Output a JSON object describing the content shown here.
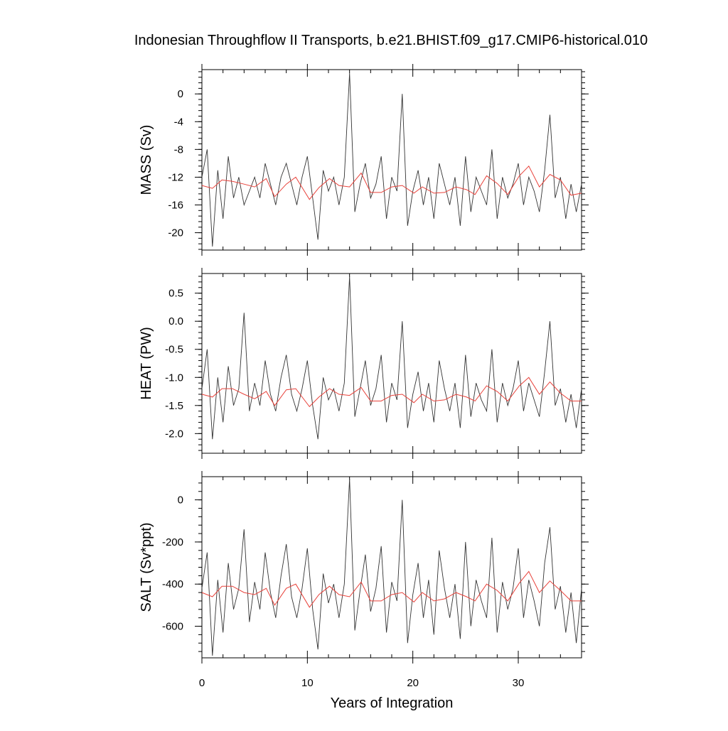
{
  "chart_data": [
    {
      "type": "line",
      "title": "Indonesian Throughflow II Transports, b.e21.BHIST.f09_g17.CMIP6-historical.010",
      "xlabel": "",
      "ylabel": "MASS (Sv)",
      "xlim": [
        0,
        36
      ],
      "ylim": [
        -22.5,
        3.5
      ],
      "xticks": [
        "0",
        "10",
        "20",
        "30"
      ],
      "yticks": [
        "0",
        "-4",
        "-8",
        "-12",
        "-16",
        "-20"
      ],
      "ytick_values": [
        0,
        -4,
        -8,
        -12,
        -16,
        -20
      ],
      "series": [
        {
          "color": "#333333",
          "x": [
            0,
            0.5,
            1,
            1.5,
            2,
            2.5,
            3,
            3.5,
            4,
            4.5,
            5,
            5.5,
            6,
            6.5,
            7,
            7.5,
            8,
            8.5,
            9,
            9.5,
            10,
            10.5,
            11,
            11.5,
            12,
            12.5,
            13,
            13.5,
            14,
            14.5,
            15,
            15.5,
            16,
            16.5,
            17,
            17.5,
            18,
            18.5,
            19,
            19.5,
            20,
            20.5,
            21,
            21.5,
            22,
            22.5,
            23,
            23.5,
            24,
            24.5,
            25,
            25.5,
            26,
            26.5,
            27,
            27.5,
            28,
            28.5,
            29,
            29.5,
            30,
            30.5,
            31,
            31.5,
            32,
            32.5,
            33,
            33.5,
            34,
            34.5,
            35,
            35.5,
            36
          ],
          "values": [
            -12,
            -8,
            -22,
            -11,
            -18,
            -9,
            -15,
            -12,
            -16,
            -14,
            -12,
            -15,
            -10,
            -13,
            -16,
            -12,
            -10,
            -13,
            -16,
            -12,
            -9,
            -15,
            -21,
            -11,
            -14,
            -12,
            -16,
            -12,
            3,
            -17,
            -13,
            -10,
            -15,
            -13,
            -9,
            -18,
            -12,
            -14,
            0,
            -19,
            -14,
            -11,
            -16,
            -12,
            -18,
            -10,
            -13,
            -16,
            -12,
            -19,
            -9,
            -17,
            -12,
            -14,
            -16,
            -8,
            -18,
            -12,
            -15,
            -13,
            -10,
            -16,
            -12,
            -14,
            -17,
            -11,
            -3,
            -15,
            -12,
            -18,
            -13,
            -17,
            -13
          ]
        },
        {
          "color": "#e8413a",
          "x": [
            0,
            1,
            1.9,
            2.9,
            4,
            5,
            6.1,
            6.9,
            8,
            8.9,
            10.2,
            11.1,
            12.1,
            13,
            14,
            15.1,
            16,
            17,
            18,
            19,
            20.1,
            20.9,
            22,
            23,
            24.1,
            25.1,
            25.9,
            27,
            28,
            29,
            30.1,
            31,
            32,
            33,
            34,
            35,
            36
          ],
          "values": [
            -13.2,
            -13.6,
            -12.4,
            -12.6,
            -13.0,
            -13.4,
            -12.2,
            -14.8,
            -13.0,
            -12.0,
            -15.2,
            -13.5,
            -12.2,
            -13.2,
            -13.4,
            -11.4,
            -14.2,
            -14.2,
            -13.4,
            -13.2,
            -14.3,
            -13.4,
            -14.3,
            -14.2,
            -13.4,
            -13.8,
            -14.5,
            -11.8,
            -12.9,
            -14.5,
            -11.8,
            -10.4,
            -13.4,
            -11.6,
            -12.4,
            -14.6,
            -14.3
          ]
        }
      ]
    },
    {
      "type": "line",
      "title": "",
      "xlabel": "",
      "ylabel": "HEAT (PW)",
      "xlim": [
        0,
        36
      ],
      "ylim": [
        -2.35,
        0.85
      ],
      "xticks": [
        "0",
        "10",
        "20",
        "30"
      ],
      "yticks": [
        "0.5",
        "0.0",
        "-0.5",
        "-1.0",
        "-1.5",
        "-2.0"
      ],
      "ytick_values": [
        0.5,
        0.0,
        -0.5,
        -1.0,
        -1.5,
        -2.0
      ],
      "series": [
        {
          "color": "#333333",
          "x": [
            0,
            0.5,
            1,
            1.5,
            2,
            2.5,
            3,
            3.5,
            4,
            4.5,
            5,
            5.5,
            6,
            6.5,
            7,
            7.5,
            8,
            8.5,
            9,
            9.5,
            10,
            10.5,
            11,
            11.5,
            12,
            12.5,
            13,
            13.5,
            14,
            14.5,
            15,
            15.5,
            16,
            16.5,
            17,
            17.5,
            18,
            18.5,
            19,
            19.5,
            20,
            20.5,
            21,
            21.5,
            22,
            22.5,
            23,
            23.5,
            24,
            24.5,
            25,
            25.5,
            26,
            26.5,
            27,
            27.5,
            28,
            28.5,
            29,
            29.5,
            30,
            30.5,
            31,
            31.5,
            32,
            32.5,
            33,
            33.5,
            34,
            34.5,
            35,
            35.5,
            36
          ],
          "values": [
            -1.2,
            -0.5,
            -2.1,
            -1.0,
            -1.8,
            -0.8,
            -1.5,
            -1.2,
            0.15,
            -1.6,
            -1.1,
            -1.5,
            -0.7,
            -1.3,
            -1.6,
            -1.0,
            -0.6,
            -1.3,
            -1.6,
            -1.2,
            -0.7,
            -1.5,
            -2.1,
            -1.0,
            -1.4,
            -1.2,
            -1.6,
            -1.1,
            0.8,
            -1.7,
            -1.2,
            -0.7,
            -1.5,
            -1.2,
            -0.6,
            -1.8,
            -1.1,
            -1.4,
            0.0,
            -1.9,
            -1.3,
            -0.9,
            -1.6,
            -1.1,
            -1.8,
            -0.7,
            -1.2,
            -1.6,
            -1.1,
            -1.9,
            -0.6,
            -1.7,
            -1.1,
            -1.4,
            -1.6,
            -0.5,
            -1.8,
            -1.1,
            -1.5,
            -1.2,
            -0.7,
            -1.6,
            -1.1,
            -1.4,
            -1.7,
            -0.9,
            0.0,
            -1.5,
            -1.2,
            -1.8,
            -1.3,
            -1.9,
            -1.2
          ]
        },
        {
          "color": "#e8413a",
          "x": [
            0,
            1,
            1.9,
            2.9,
            4,
            5,
            6.1,
            6.9,
            8,
            8.9,
            10.2,
            11.1,
            12.1,
            13,
            14,
            15.1,
            16,
            17,
            18,
            19,
            20.1,
            20.9,
            22,
            23,
            24.1,
            25.1,
            25.9,
            27,
            28,
            29,
            30.1,
            31,
            32,
            33,
            34,
            35,
            36
          ],
          "values": [
            -1.3,
            -1.35,
            -1.2,
            -1.2,
            -1.3,
            -1.38,
            -1.25,
            -1.5,
            -1.22,
            -1.2,
            -1.52,
            -1.35,
            -1.2,
            -1.3,
            -1.32,
            -1.18,
            -1.42,
            -1.42,
            -1.32,
            -1.3,
            -1.45,
            -1.3,
            -1.42,
            -1.4,
            -1.3,
            -1.35,
            -1.42,
            -1.15,
            -1.25,
            -1.42,
            -1.15,
            -1.0,
            -1.3,
            -1.08,
            -1.28,
            -1.42,
            -1.42
          ]
        }
      ]
    },
    {
      "type": "line",
      "title": "",
      "xlabel": "Years of Integration",
      "ylabel": "SALT (Sv*ppt)",
      "xlim": [
        0,
        36
      ],
      "ylim": [
        -750,
        110
      ],
      "xticks": [
        "0",
        "10",
        "20",
        "30"
      ],
      "yticks": [
        "0",
        "-200",
        "-400",
        "-600"
      ],
      "ytick_values": [
        0,
        -200,
        -400,
        -600
      ],
      "series": [
        {
          "color": "#333333",
          "x": [
            0,
            0.5,
            1,
            1.5,
            2,
            2.5,
            3,
            3.5,
            4,
            4.5,
            5,
            5.5,
            6,
            6.5,
            7,
            7.5,
            8,
            8.5,
            9,
            9.5,
            10,
            10.5,
            11,
            11.5,
            12,
            12.5,
            13,
            13.5,
            14,
            14.5,
            15,
            15.5,
            16,
            16.5,
            17,
            17.5,
            18,
            18.5,
            19,
            19.5,
            20,
            20.5,
            21,
            21.5,
            22,
            22.5,
            23,
            23.5,
            24,
            24.5,
            25,
            25.5,
            26,
            26.5,
            27,
            27.5,
            28,
            28.5,
            29,
            29.5,
            30,
            30.5,
            31,
            31.5,
            32,
            32.5,
            33,
            33.5,
            34,
            34.5,
            35,
            35.5,
            36
          ],
          "values": [
            -420,
            -250,
            -740,
            -380,
            -630,
            -300,
            -520,
            -420,
            -140,
            -580,
            -390,
            -520,
            -250,
            -440,
            -560,
            -360,
            -210,
            -460,
            -560,
            -420,
            -230,
            -520,
            -710,
            -350,
            -490,
            -400,
            -560,
            -400,
            100,
            -620,
            -430,
            -260,
            -530,
            -420,
            -220,
            -630,
            -390,
            -480,
            0,
            -680,
            -450,
            -300,
            -560,
            -380,
            -640,
            -240,
            -420,
            -560,
            -400,
            -660,
            -200,
            -600,
            -380,
            -480,
            -560,
            -180,
            -630,
            -390,
            -520,
            -420,
            -230,
            -560,
            -380,
            -480,
            -600,
            -300,
            -130,
            -520,
            -410,
            -630,
            -440,
            -680,
            -420
          ]
        },
        {
          "color": "#e8413a",
          "x": [
            0,
            1,
            1.9,
            2.9,
            4,
            5,
            6.1,
            6.9,
            8,
            8.9,
            10.2,
            11.1,
            12.1,
            13,
            14,
            15.1,
            16,
            17,
            18,
            19,
            20.1,
            20.9,
            22,
            23,
            24.1,
            25.1,
            25.9,
            27,
            28,
            29,
            30.1,
            31,
            32,
            33,
            34,
            35,
            36
          ],
          "values": [
            -440,
            -460,
            -410,
            -410,
            -440,
            -450,
            -420,
            -500,
            -420,
            -400,
            -510,
            -450,
            -410,
            -450,
            -460,
            -390,
            -480,
            -480,
            -450,
            -440,
            -485,
            -440,
            -480,
            -470,
            -440,
            -460,
            -480,
            -400,
            -430,
            -480,
            -395,
            -340,
            -440,
            -385,
            -430,
            -480,
            -480
          ]
        }
      ]
    }
  ]
}
